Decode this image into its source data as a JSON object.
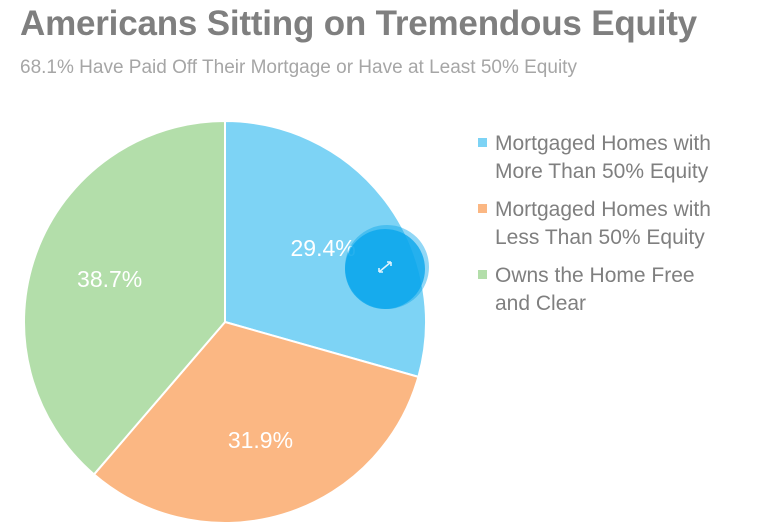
{
  "title": "Americans Sitting on Tremendous Equity",
  "subtitle": "68.1% Have Paid Off Their Mortgage or Have at Least 50% Equity",
  "chart_data": {
    "type": "pie",
    "title": "Americans Sitting on Tremendous Equity",
    "subtitle": "68.1% Have Paid Off Their Mortgage or Have at Least 50% Equity",
    "legend_position": "right",
    "slices": [
      {
        "name": "Mortgaged Homes with More Than 50% Equity",
        "value": 29.4,
        "label": "29.4%",
        "color": "#7dd3f5"
      },
      {
        "name": "Mortgaged Homes with Less Than 50% Equity",
        "value": 31.9,
        "label": "31.9%",
        "color": "#fbb783"
      },
      {
        "name": "Owns the Home Free and Clear",
        "value": 38.7,
        "label": "38.7%",
        "color": "#b3deaa"
      }
    ]
  },
  "cursor": {
    "color": "#0aa6ec",
    "icon": "resize-diagonal-icon"
  }
}
